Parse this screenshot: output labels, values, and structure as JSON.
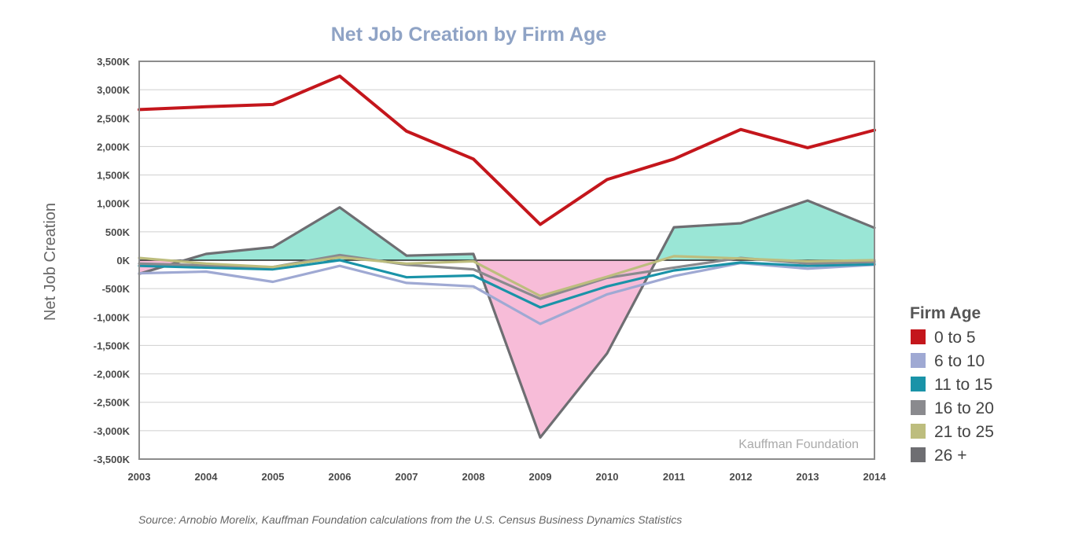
{
  "chart_data": {
    "type": "line",
    "title": "Net Job Creation by Firm Age",
    "ylabel": "Net Job Creation",
    "xlabel": "",
    "x": [
      "2003",
      "2004",
      "2005",
      "2006",
      "2007",
      "2008",
      "2009",
      "2010",
      "2011",
      "2012",
      "2013",
      "2014"
    ],
    "ylim": [
      -3500,
      3500
    ],
    "yticks": [
      3500,
      3000,
      2500,
      2000,
      1500,
      1000,
      500,
      0,
      -500,
      -1000,
      -1500,
      -2000,
      -2500,
      -3000,
      -3500
    ],
    "ytick_labels": [
      "3,500K",
      "3,000K",
      "2,500K",
      "2,000K",
      "1,500K",
      "1,000K",
      "500K",
      "0K",
      "-500K",
      "-1,000K",
      "-1,500K",
      "-2,000K",
      "-2,500K",
      "-3,000K",
      "-3,500K"
    ],
    "grid": true,
    "legend_title": "Firm Age",
    "legend_position": "right",
    "series": [
      {
        "name": "0 to 5",
        "color": "#c4161c",
        "values": [
          2650,
          2700,
          2740,
          3240,
          2270,
          1780,
          630,
          1420,
          1780,
          2300,
          1980,
          2290
        ]
      },
      {
        "name": "6 to 10",
        "color": "#9fa9d3",
        "values": [
          -230,
          -200,
          -380,
          -100,
          -400,
          -460,
          -1120,
          -600,
          -280,
          -50,
          -150,
          -80
        ]
      },
      {
        "name": "11 to 15",
        "color": "#1a93a8",
        "values": [
          -100,
          -130,
          -160,
          0,
          -300,
          -270,
          -830,
          -460,
          -180,
          -40,
          -100,
          -70
        ]
      },
      {
        "name": "16 to 20",
        "color": "#8a8a8e",
        "values": [
          -60,
          -90,
          -120,
          90,
          -80,
          -160,
          -680,
          -310,
          -130,
          40,
          -60,
          -30
        ]
      },
      {
        "name": "21 to 25",
        "color": "#bdbd7e",
        "values": [
          40,
          -60,
          -120,
          50,
          -60,
          -20,
          -630,
          -290,
          70,
          30,
          -20,
          0
        ]
      },
      {
        "name": "26 +",
        "color": "#6e6e72",
        "values": [
          -240,
          110,
          230,
          930,
          80,
          110,
          -3120,
          -1640,
          580,
          650,
          1050,
          570
        ]
      }
    ],
    "area_fill": {
      "positive": "#9ae6d6",
      "negative": "#f7bcd8",
      "series": "26 +"
    },
    "annotation": "Kauffman Foundation"
  },
  "source_note": "Source: Arnobio Morelix, Kauffman Foundation calculations from the U.S. Census Business Dynamics Statistics"
}
